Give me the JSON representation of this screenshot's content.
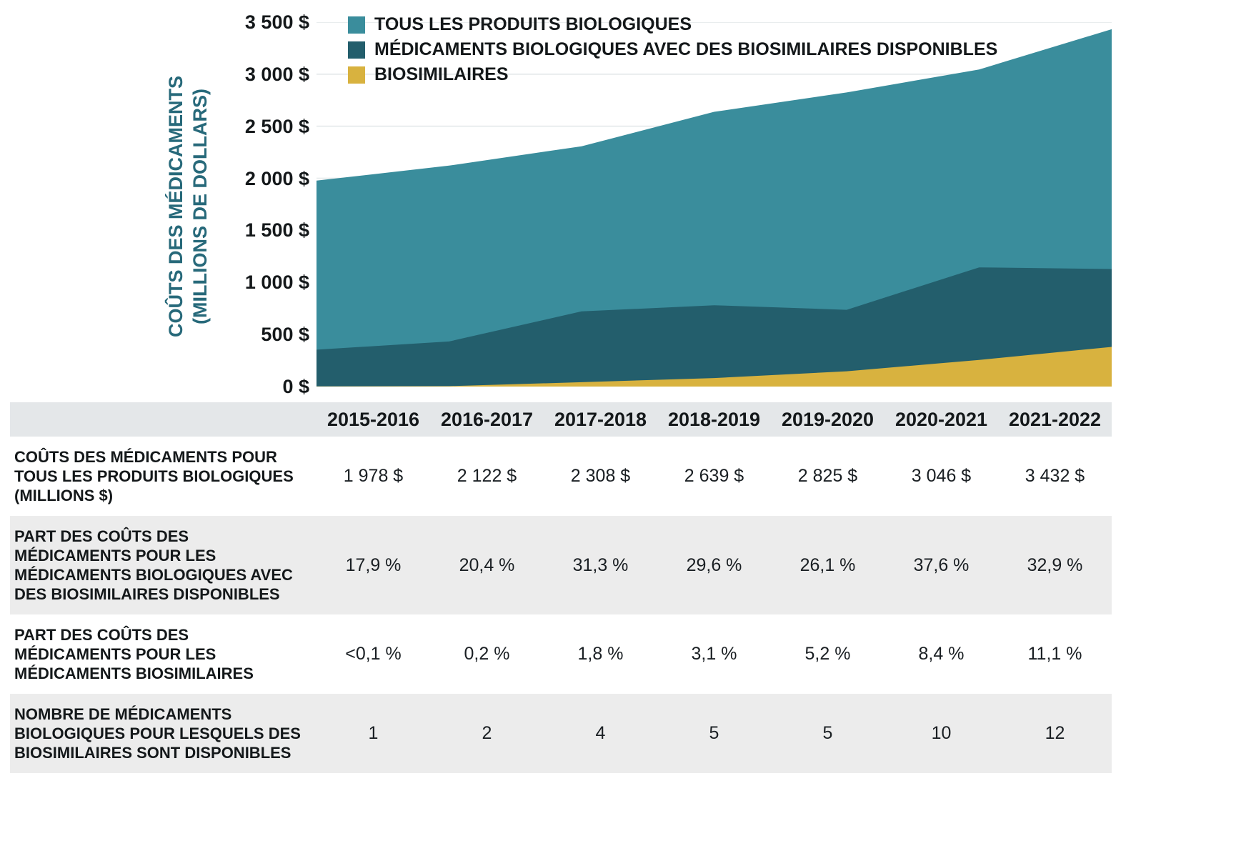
{
  "colors": {
    "teal": "#3a8d9c",
    "dark_teal": "#235e6c",
    "gold": "#d8b23f",
    "axis_title_text": "#27697a",
    "text_dark": "#14181a",
    "grid": "#e9edee",
    "table_header_bg": "#e4e7e9",
    "table_alt_row_bg": "#ececec"
  },
  "chart_data": {
    "type": "area",
    "overlapping_areas": true,
    "title": "",
    "ylabel": [
      "COÛTS DES MÉDICAMENTS",
      "(MILLIONS DE DOLLARS)"
    ],
    "ylim": [
      0,
      3500
    ],
    "ytick_step": 500,
    "yticks": [
      {
        "value": 3500,
        "label": "3 500 $"
      },
      {
        "value": 3000,
        "label": "3 000 $"
      },
      {
        "value": 2500,
        "label": "2 500 $"
      },
      {
        "value": 2000,
        "label": "2 000 $"
      },
      {
        "value": 1500,
        "label": "1 500 $"
      },
      {
        "value": 1000,
        "label": "1 000 $"
      },
      {
        "value": 500,
        "label": "500 $"
      },
      {
        "value": 0,
        "label": "0 $"
      }
    ],
    "grid": "horizontal",
    "legend_position": "top-left-inside",
    "categories": [
      "2015-2016",
      "2016-2017",
      "2017-2018",
      "2018-2019",
      "2019-2020",
      "2020-2021",
      "2021-2022"
    ],
    "series": [
      {
        "id": "tous-les-produits-biologiques",
        "name": "TOUS LES PRODUITS BIOLOGIQUES",
        "color": "#3a8d9c",
        "values": [
          1978,
          2122,
          2308,
          2639,
          2825,
          3046,
          3432
        ]
      },
      {
        "id": "biologiques-avec-biosimilaires",
        "name": "MÉDICAMENTS BIOLOGIQUES AVEC DES BIOSIMILAIRES DISPONIBLES",
        "color": "#235e6c",
        "values": [
          354,
          433,
          722,
          781,
          737,
          1145,
          1129
        ]
      },
      {
        "id": "biosimilaires",
        "name": "BIOSIMILAIRES",
        "color": "#d8b23f",
        "values": [
          2,
          4,
          42,
          82,
          147,
          256,
          381
        ]
      }
    ]
  },
  "table": {
    "header": [
      "2015-2016",
      "2016-2017",
      "2017-2018",
      "2018-2019",
      "2019-2020",
      "2020-2021",
      "2021-2022"
    ],
    "rows": [
      {
        "label": "COÛTS DES MÉDICAMENTS POUR TOUS LES PRODUITS BIOLOGIQUES (MILLIONS $)",
        "values": [
          "1 978 $",
          "2 122 $",
          "2 308 $",
          "2 639 $",
          "2 825 $",
          "3 046 $",
          "3 432 $"
        ]
      },
      {
        "label": "PART DES COÛTS DES MÉDICAMENTS POUR LES MÉDICAMENTS BIOLOGIQUES AVEC DES BIOSIMILAIRES DISPONIBLES",
        "values": [
          "17,9 %",
          "20,4 %",
          "31,3 %",
          "29,6 %",
          "26,1 %",
          "37,6 %",
          "32,9 %"
        ]
      },
      {
        "label": "PART DES COÛTS DES MÉDICAMENTS POUR LES MÉDICAMENTS BIOSIMILAIRES",
        "values": [
          "<0,1 %",
          "0,2 %",
          "1,8 %",
          "3,1 %",
          "5,2 %",
          "8,4 %",
          "11,1 %"
        ]
      },
      {
        "label": "NOMBRE DE MÉDICAMENTS BIOLOGIQUES POUR LESQUELS DES BIOSIMILAIRES SONT DISPONIBLES",
        "values": [
          "1",
          "2",
          "4",
          "5",
          "5",
          "10",
          "12"
        ]
      }
    ]
  }
}
